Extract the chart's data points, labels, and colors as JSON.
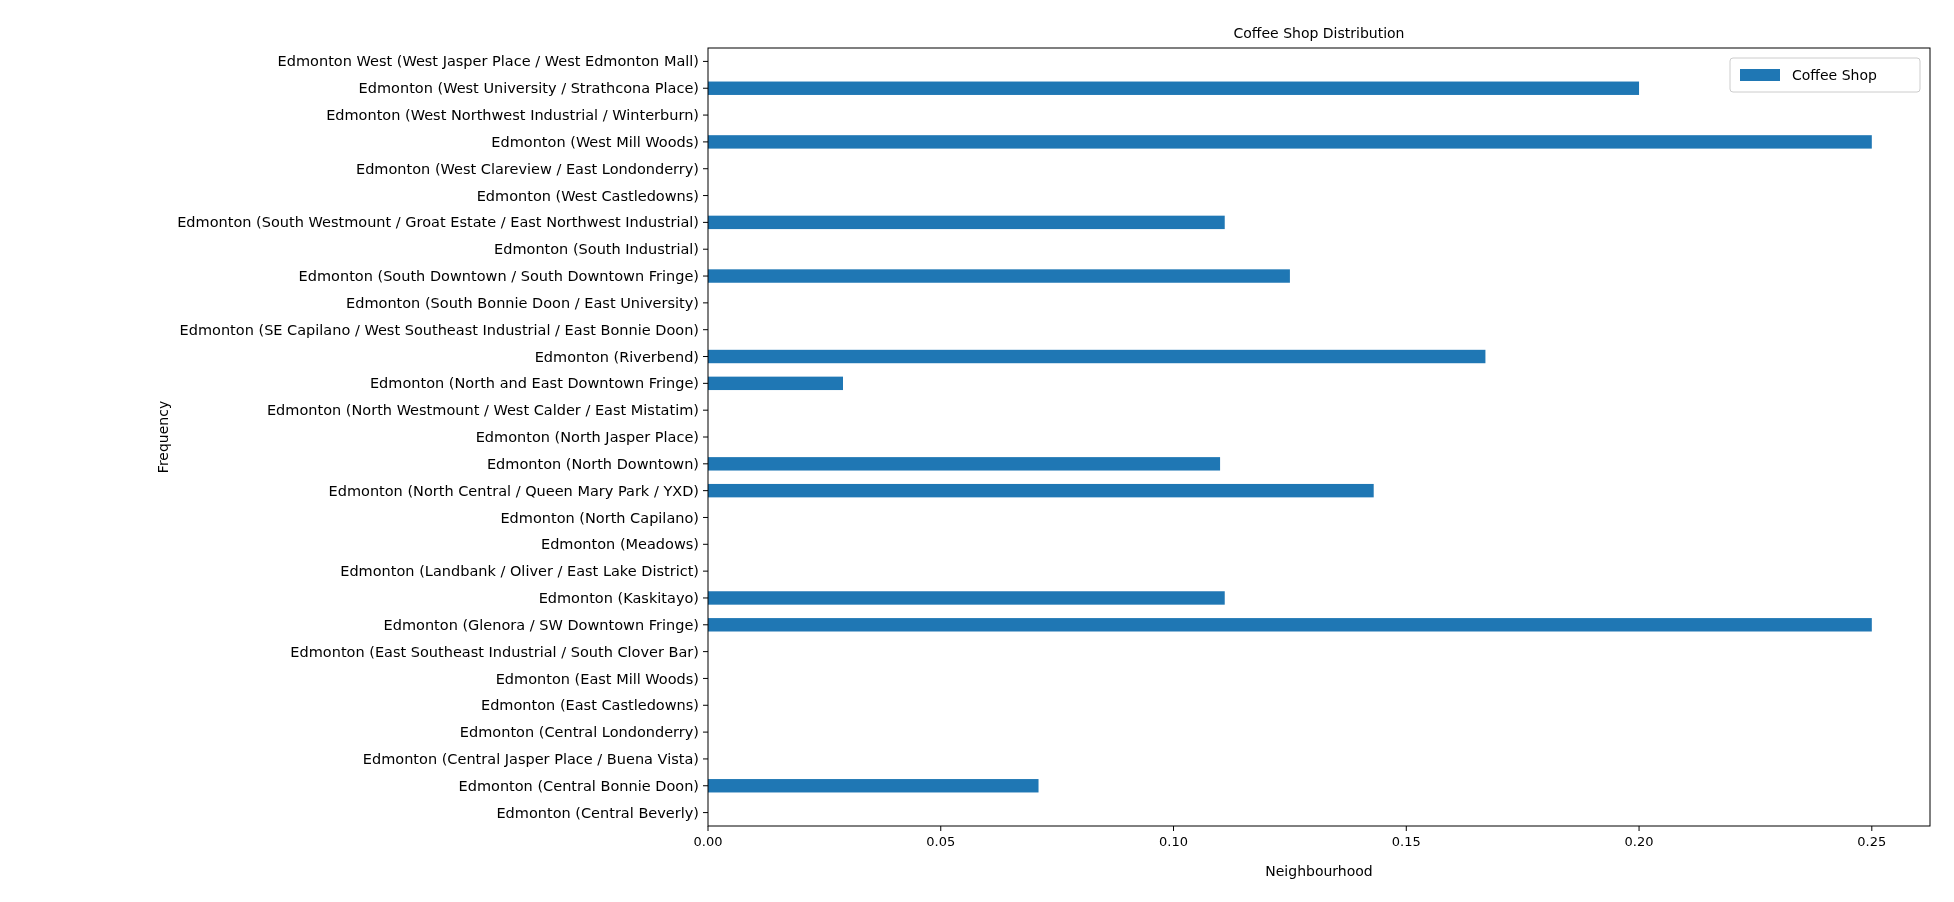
{
  "chart_data": {
    "type": "bar",
    "orientation": "horizontal",
    "title": "Coffee Shop Distribution",
    "xlabel": "Neighbourhood",
    "ylabel": "Frequency",
    "categories": [
      "Edmonton West (West Jasper Place / West Edmonton Mall)",
      "Edmonton (West University / Strathcona Place)",
      "Edmonton (West Northwest Industrial / Winterburn)",
      "Edmonton (West Mill Woods)",
      "Edmonton (West Clareview / East Londonderry)",
      "Edmonton (West Castledowns)",
      "Edmonton (South Westmount / Groat Estate / East Northwest Industrial)",
      "Edmonton (South Industrial)",
      "Edmonton (South Downtown / South Downtown Fringe)",
      "Edmonton (South Bonnie Doon / East University)",
      "Edmonton (SE Capilano / West Southeast Industrial / East Bonnie Doon)",
      "Edmonton (Riverbend)",
      "Edmonton (North and East Downtown Fringe)",
      "Edmonton (North Westmount / West Calder / East Mistatim)",
      "Edmonton (North Jasper Place)",
      "Edmonton (North Downtown)",
      "Edmonton (North Central / Queen Mary Park / YXD)",
      "Edmonton (North Capilano)",
      "Edmonton (Meadows)",
      "Edmonton (Landbank / Oliver / East Lake District)",
      "Edmonton (Kaskitayo)",
      "Edmonton (Glenora / SW Downtown Fringe)",
      "Edmonton (East Southeast Industrial / South Clover Bar)",
      "Edmonton (East Mill Woods)",
      "Edmonton (East Castledowns)",
      "Edmonton (Central Londonderry)",
      "Edmonton (Central Jasper Place / Buena Vista)",
      "Edmonton (Central Bonnie Doon)",
      "Edmonton (Central Beverly)"
    ],
    "series": [
      {
        "name": "Coffee Shop",
        "color": "#1f77b4",
        "values": [
          0,
          0.2,
          0,
          0.25,
          0,
          0,
          0.111,
          0,
          0.125,
          0,
          0,
          0.167,
          0.029,
          0,
          0,
          0.11,
          0.143,
          0,
          0,
          0,
          0.111,
          0.25,
          0,
          0,
          0,
          0,
          0,
          0.071,
          0
        ]
      }
    ],
    "xlim": [
      0,
      0.2625
    ],
    "xticks": [
      {
        "value": 0,
        "label": "0.00"
      },
      {
        "value": 0.05,
        "label": "0.05"
      },
      {
        "value": 0.1,
        "label": "0.10"
      },
      {
        "value": 0.15,
        "label": "0.15"
      },
      {
        "value": 0.2,
        "label": "0.20"
      },
      {
        "value": 0.25,
        "label": "0.25"
      }
    ],
    "legend": "top right"
  }
}
